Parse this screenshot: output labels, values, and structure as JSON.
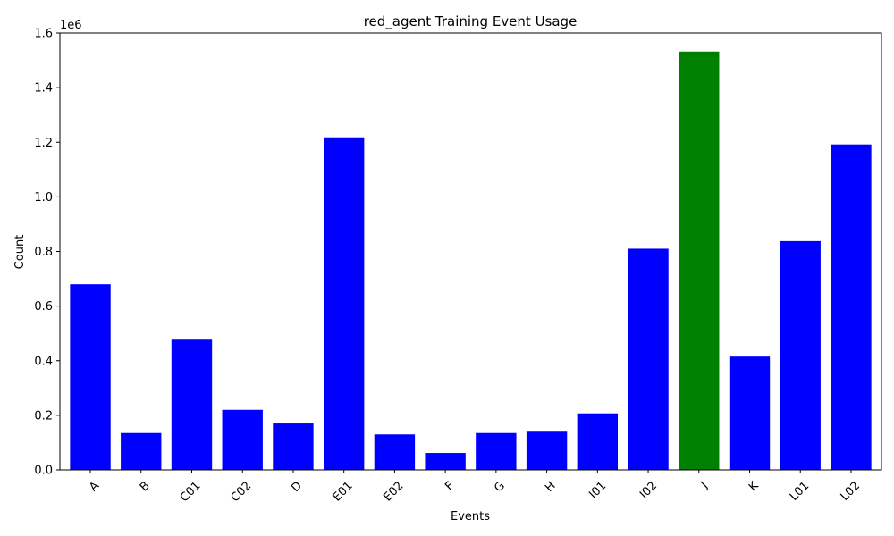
{
  "chart_data": {
    "type": "bar",
    "title": "red_agent Training Event Usage",
    "xlabel": "Events",
    "ylabel": "Count",
    "y_offset_label": "1e6",
    "y_scale": 1000000,
    "ylim": [
      0,
      1.6
    ],
    "yticks": [
      "0.0",
      "0.2",
      "0.4",
      "0.6",
      "0.8",
      "1.0",
      "1.2",
      "1.4",
      "1.6"
    ],
    "grid": false,
    "categories": [
      "A",
      "B",
      "C01",
      "C02",
      "D",
      "E01",
      "E02",
      "F",
      "G",
      "H",
      "I01",
      "I02",
      "J",
      "K",
      "L01",
      "L02"
    ],
    "values": [
      680000,
      135000,
      477000,
      220000,
      170000,
      1218000,
      130000,
      62000,
      135000,
      140000,
      207000,
      810000,
      1532000,
      415000,
      838000,
      1192000
    ],
    "colors": [
      "#0000ff",
      "#0000ff",
      "#0000ff",
      "#0000ff",
      "#0000ff",
      "#0000ff",
      "#0000ff",
      "#0000ff",
      "#0000ff",
      "#0000ff",
      "#0000ff",
      "#0000ff",
      "#008000",
      "#0000ff",
      "#0000ff",
      "#0000ff"
    ]
  }
}
